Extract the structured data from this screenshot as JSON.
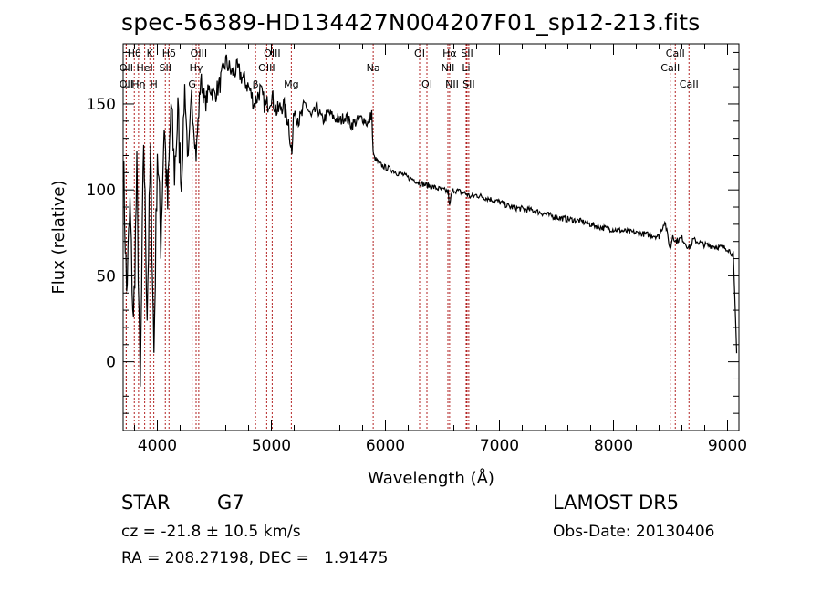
{
  "chart_data": {
    "type": "line",
    "title": "spec-56389-HD134427N004207F01_sp12-213.fits",
    "xlabel": "Wavelength (Å)",
    "ylabel": "Flux (relative)",
    "xlim": [
      3700,
      9100
    ],
    "ylim": [
      -40,
      185
    ],
    "x_ticks": [
      4000,
      5000,
      6000,
      7000,
      8000,
      9000
    ],
    "y_ticks": [
      0,
      50,
      100,
      150
    ],
    "line_color": "#000000",
    "marker_color": "#b22222",
    "grid": false,
    "series": [
      {
        "x": [
          3700,
          3730,
          3760,
          3790,
          3820,
          3850,
          3880,
          3910,
          3940,
          3970,
          4000,
          4030,
          4060,
          4090,
          4120,
          4150,
          4180,
          4210,
          4240,
          4270,
          4300,
          4340,
          4380,
          4420,
          4460,
          4500,
          4550,
          4600,
          4650,
          4700,
          4750,
          4800,
          4850,
          4900,
          4950,
          5000,
          5050,
          5100,
          5150,
          5180,
          5200,
          5250,
          5300,
          5350,
          5400,
          5450,
          5500,
          5550,
          5600,
          5650,
          5700,
          5750,
          5800,
          5850,
          5880,
          5893,
          5910,
          5950,
          6000,
          6050,
          6100,
          6150,
          6200,
          6250,
          6300,
          6350,
          6400,
          6450,
          6500,
          6550,
          6563,
          6580,
          6600,
          6650,
          6700,
          6750,
          6800,
          6900,
          7000,
          7100,
          7200,
          7300,
          7400,
          7500,
          7600,
          7700,
          7800,
          7900,
          8000,
          8100,
          8200,
          8300,
          8400,
          8450,
          8498,
          8520,
          8542,
          8600,
          8662,
          8700,
          8800,
          8900,
          9000,
          9050,
          9080
        ],
        "y": [
          120,
          40,
          90,
          20,
          110,
          -20,
          130,
          30,
          120,
          5,
          125,
          70,
          140,
          90,
          150,
          110,
          145,
          100,
          160,
          115,
          155,
          120,
          165,
          150,
          160,
          155,
          162,
          175,
          168,
          170,
          165,
          160,
          150,
          158,
          148,
          155,
          145,
          150,
          140,
          120,
          148,
          140,
          150,
          142,
          148,
          140,
          145,
          142,
          140,
          143,
          138,
          140,
          142,
          138,
          145,
          120,
          118,
          115,
          113,
          112,
          110,
          109,
          107,
          106,
          104,
          103,
          102,
          101,
          100,
          99,
          90,
          98,
          100,
          99,
          98,
          96,
          97,
          95,
          93,
          90,
          89,
          88,
          86,
          84,
          83,
          82,
          80,
          78,
          77,
          76,
          75,
          74,
          73,
          82,
          65,
          74,
          70,
          72,
          66,
          71,
          68,
          67,
          66,
          62,
          5
        ]
      }
    ],
    "lines": [
      {
        "name": "Hθ",
        "x": 3798,
        "row": 1
      },
      {
        "name": "OII",
        "x": 3727,
        "row": 2
      },
      {
        "name": "Hη",
        "x": 3835,
        "row": 3
      },
      {
        "name": "OII",
        "x": 3727,
        "row": 3
      },
      {
        "name": "K",
        "x": 3934,
        "row": 1
      },
      {
        "name": "HeI",
        "x": 3889,
        "row": 2
      },
      {
        "name": "H",
        "x": 3969,
        "row": 3
      },
      {
        "name": "Hδ",
        "x": 4102,
        "row": 1
      },
      {
        "name": "SII",
        "x": 4070,
        "row": 2
      },
      {
        "name": "OIII",
        "x": 4363,
        "row": 1
      },
      {
        "name": "Hγ",
        "x": 4340,
        "row": 2
      },
      {
        "name": "G",
        "x": 4305,
        "row": 3
      },
      {
        "name": "OIII",
        "x": 5007,
        "row": 1
      },
      {
        "name": "OIII",
        "x": 4959,
        "row": 2
      },
      {
        "name": "β",
        "x": 4861,
        "row": 3
      },
      {
        "name": "Mg",
        "x": 5175,
        "row": 3
      },
      {
        "name": "Na",
        "x": 5893,
        "row": 2
      },
      {
        "name": "OI",
        "x": 6300,
        "row": 1
      },
      {
        "name": "OI",
        "x": 6364,
        "row": 3
      },
      {
        "name": "Hα",
        "x": 6563,
        "row": 1
      },
      {
        "name": "SII",
        "x": 6716,
        "row": 1
      },
      {
        "name": "NII",
        "x": 6548,
        "row": 2
      },
      {
        "name": "Li",
        "x": 6708,
        "row": 2
      },
      {
        "name": "NII",
        "x": 6584,
        "row": 3
      },
      {
        "name": "SII",
        "x": 6731,
        "row": 3
      },
      {
        "name": "CaII",
        "x": 8542,
        "row": 1
      },
      {
        "name": "CaII",
        "x": 8498,
        "row": 2
      },
      {
        "name": "CaII",
        "x": 8662,
        "row": 3
      }
    ]
  },
  "info": {
    "object_class": "STAR",
    "subclass": "G7",
    "redshift": "cz = -21.8 ± 10.5 km/s",
    "radec": "RA = 208.27198, DEC =   1.91475",
    "survey": "LAMOST DR5",
    "obs_date": "Obs-Date: 20130406"
  }
}
